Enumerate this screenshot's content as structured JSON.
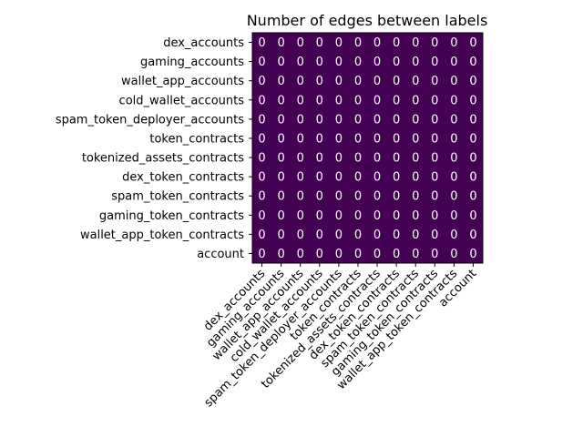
{
  "chart_data": {
    "type": "heatmap",
    "title": "Number of edges between labels",
    "xlabel": "",
    "ylabel": "",
    "x_categories": [
      "dex_accounts",
      "gaming_accounts",
      "wallet_app_accounts",
      "cold_wallet_accounts",
      "spam_token_deployer_accounts",
      "token_contracts",
      "tokenized_assets_contracts",
      "dex_token_contracts",
      "spam_token_contracts",
      "gaming_token_contracts",
      "wallet_app_token_contracts",
      "account"
    ],
    "y_categories": [
      "dex_accounts",
      "gaming_accounts",
      "wallet_app_accounts",
      "cold_wallet_accounts",
      "spam_token_deployer_accounts",
      "token_contracts",
      "tokenized_assets_contracts",
      "dex_token_contracts",
      "spam_token_contracts",
      "gaming_token_contracts",
      "wallet_app_token_contracts",
      "account"
    ],
    "values": [
      [
        0,
        0,
        0,
        0,
        0,
        0,
        0,
        0,
        0,
        0,
        0,
        0
      ],
      [
        0,
        0,
        0,
        0,
        0,
        0,
        0,
        0,
        0,
        0,
        0,
        0
      ],
      [
        0,
        0,
        0,
        0,
        0,
        0,
        0,
        0,
        0,
        0,
        0,
        0
      ],
      [
        0,
        0,
        0,
        0,
        0,
        0,
        0,
        0,
        0,
        0,
        0,
        0
      ],
      [
        0,
        0,
        0,
        0,
        0,
        0,
        0,
        0,
        0,
        0,
        0,
        0
      ],
      [
        0,
        0,
        0,
        0,
        0,
        0,
        0,
        0,
        0,
        0,
        0,
        0
      ],
      [
        0,
        0,
        0,
        0,
        0,
        0,
        0,
        0,
        0,
        0,
        0,
        0
      ],
      [
        0,
        0,
        0,
        0,
        0,
        0,
        0,
        0,
        0,
        0,
        0,
        0
      ],
      [
        0,
        0,
        0,
        0,
        0,
        0,
        0,
        0,
        0,
        0,
        0,
        0
      ],
      [
        0,
        0,
        0,
        0,
        0,
        0,
        0,
        0,
        0,
        0,
        0,
        0
      ],
      [
        0,
        0,
        0,
        0,
        0,
        0,
        0,
        0,
        0,
        0,
        0,
        0
      ],
      [
        0,
        0,
        0,
        0,
        0,
        0,
        0,
        0,
        0,
        0,
        0,
        0
      ]
    ],
    "colormap": "viridis",
    "cell_color": "#440154",
    "cell_text_color": "#ffffff",
    "grid": false,
    "legend": "none"
  }
}
